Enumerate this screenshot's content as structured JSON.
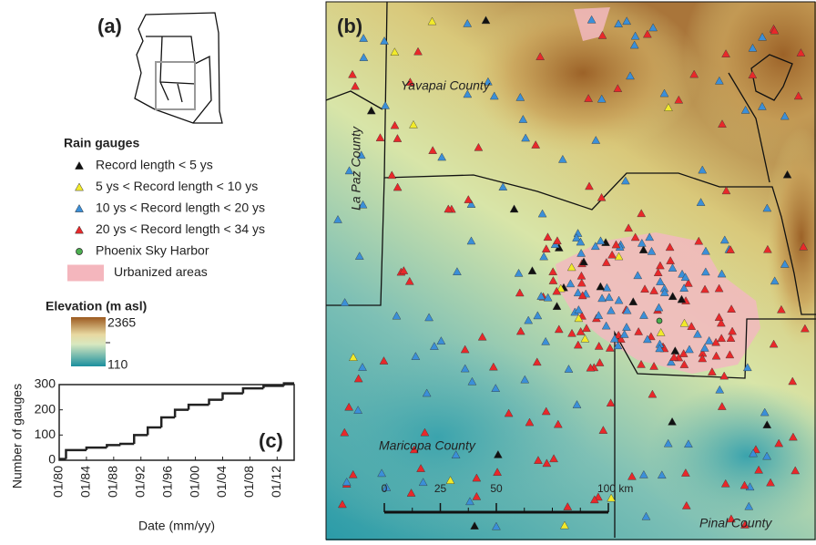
{
  "panel_a": {
    "label": "(a)"
  },
  "panel_b": {
    "label": "(b)"
  },
  "legend": {
    "title": "Rain gauges",
    "items": [
      {
        "label": "Record length < 5 ys",
        "color": "#111111",
        "shape": "triangle"
      },
      {
        "label": "5 ys < Record length < 10 ys",
        "color": "#f2ea2a",
        "shape": "triangle"
      },
      {
        "label": "10 ys < Record length < 20 ys",
        "color": "#3b8fd8",
        "shape": "triangle"
      },
      {
        "label": "20 ys < Record length < 34 ys",
        "color": "#e8282a",
        "shape": "triangle"
      },
      {
        "label": "Phoenix Sky Harbor",
        "color": "#4caf50",
        "shape": "circle"
      },
      {
        "label": "Urbanized areas",
        "color": "#f4b6bd",
        "shape": "patch"
      }
    ]
  },
  "elevation_legend": {
    "title": "Elevation (m asl)",
    "max": 2365,
    "min": 110
  },
  "map": {
    "county_labels": [
      "Yavapai County",
      "La Paz County",
      "Maricopa County",
      "Pinal County"
    ],
    "scale_bar": {
      "ticks": [
        0,
        25,
        50,
        {
          "value": 100,
          "label": "100 km"
        }
      ]
    }
  },
  "chart_data": {
    "type": "step",
    "label": "(c)",
    "x_label": "Date (mm/yy)",
    "y_label": "Number of gauges",
    "x": [
      1980,
      1981,
      1984,
      1987,
      1989,
      1991,
      1993,
      1995,
      1997,
      1999,
      2002,
      2004,
      2007,
      2010,
      2013
    ],
    "values": [
      5,
      40,
      50,
      60,
      65,
      100,
      130,
      170,
      200,
      220,
      240,
      265,
      285,
      295,
      305
    ],
    "color": "#222222",
    "xlim": [
      1980,
      2014.5
    ],
    "ylim": [
      0,
      300
    ],
    "xticks": [
      {
        "value": 1980,
        "label": "01/80"
      },
      {
        "value": 1984,
        "label": "01/84"
      },
      {
        "value": 1988,
        "label": "01/88"
      },
      {
        "value": 1992,
        "label": "01/92"
      },
      {
        "value": 1996,
        "label": "01/96"
      },
      {
        "value": 2000,
        "label": "01/00"
      },
      {
        "value": 2004,
        "label": "01/04"
      },
      {
        "value": 2008,
        "label": "01/08"
      },
      {
        "value": 2012,
        "label": "01/12"
      }
    ],
    "yticks": [
      0,
      100,
      200,
      300
    ]
  }
}
